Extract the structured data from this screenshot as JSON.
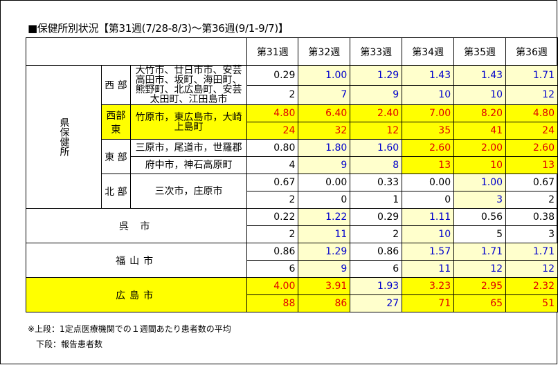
{
  "title": "■保健所別状況【第31週(7/28-8/3)～第36週(9/1-9/7)】",
  "weeks": [
    "第31週",
    "第32週",
    "第33週",
    "第34週",
    "第35週",
    "第36週"
  ],
  "prefecture_label": "県保健所",
  "rows": [
    {
      "region": "西 部",
      "munis": [
        {
          "text": "大竹市、廿日市市、安芸高田市、坂町、海田町、熊野町、北広島町、安芸太田町、江田島市",
          "cells": [
            {
              "v": "0.29",
              "c": "blk",
              "bg": ""
            },
            {
              "v": "1.00",
              "c": "blue",
              "bg": "ly"
            },
            {
              "v": "1.29",
              "c": "blue",
              "bg": "ly"
            },
            {
              "v": "1.43",
              "c": "blue",
              "bg": "ly"
            },
            {
              "v": "1.43",
              "c": "blue",
              "bg": "ly"
            },
            {
              "v": "1.71",
              "c": "blue",
              "bg": "ly"
            }
          ],
          "counts": [
            {
              "v": "2",
              "c": "blk",
              "bg": ""
            },
            {
              "v": "7",
              "c": "blue",
              "bg": "ly"
            },
            {
              "v": "9",
              "c": "blue",
              "bg": "ly"
            },
            {
              "v": "10",
              "c": "blue",
              "bg": "ly"
            },
            {
              "v": "10",
              "c": "blue",
              "bg": "ly"
            },
            {
              "v": "12",
              "c": "blue",
              "bg": "ly"
            }
          ]
        }
      ]
    },
    {
      "region": "西部東",
      "munis": [
        {
          "text": "竹原市，東広島市，大崎上島町",
          "cells": [
            {
              "v": "4.80",
              "c": "red",
              "bg": "y"
            },
            {
              "v": "6.40",
              "c": "red",
              "bg": "y"
            },
            {
              "v": "2.40",
              "c": "red",
              "bg": "y"
            },
            {
              "v": "7.00",
              "c": "red",
              "bg": "y"
            },
            {
              "v": "8.20",
              "c": "red",
              "bg": "y"
            },
            {
              "v": "4.80",
              "c": "red",
              "bg": "y"
            }
          ],
          "counts": [
            {
              "v": "24",
              "c": "red",
              "bg": "y"
            },
            {
              "v": "32",
              "c": "red",
              "bg": "y"
            },
            {
              "v": "12",
              "c": "red",
              "bg": "y"
            },
            {
              "v": "35",
              "c": "red",
              "bg": "y"
            },
            {
              "v": "41",
              "c": "red",
              "bg": "y"
            },
            {
              "v": "24",
              "c": "red",
              "bg": "y"
            }
          ]
        }
      ]
    },
    {
      "region": "東 部",
      "munis": [
        {
          "text": "三原市，尾道市，世羅郡",
          "cells": [
            {
              "v": "0.80",
              "c": "blk",
              "bg": ""
            },
            {
              "v": "1.80",
              "c": "blue",
              "bg": "ly"
            },
            {
              "v": "1.60",
              "c": "blue",
              "bg": "ly"
            },
            {
              "v": "2.60",
              "c": "red",
              "bg": "y"
            },
            {
              "v": "2.00",
              "c": "red",
              "bg": "y"
            },
            {
              "v": "2.60",
              "c": "red",
              "bg": "y"
            }
          ]
        },
        {
          "text": "府中市，神石高原町",
          "cells": [
            {
              "v": "4",
              "c": "blk",
              "bg": ""
            },
            {
              "v": "9",
              "c": "blue",
              "bg": "ly"
            },
            {
              "v": "8",
              "c": "blue",
              "bg": "ly"
            },
            {
              "v": "13",
              "c": "red",
              "bg": "y"
            },
            {
              "v": "10",
              "c": "red",
              "bg": "y"
            },
            {
              "v": "13",
              "c": "red",
              "bg": "y"
            }
          ]
        }
      ]
    },
    {
      "region": "北 部",
      "munis": [
        {
          "text": "三次市，庄原市",
          "cells": [
            {
              "v": "0.67",
              "c": "blk",
              "bg": ""
            },
            {
              "v": "0.00",
              "c": "blk",
              "bg": ""
            },
            {
              "v": "0.33",
              "c": "blk",
              "bg": ""
            },
            {
              "v": "0.00",
              "c": "blk",
              "bg": ""
            },
            {
              "v": "1.00",
              "c": "blue",
              "bg": "ly"
            },
            {
              "v": "0.67",
              "c": "blk",
              "bg": ""
            }
          ],
          "counts": [
            {
              "v": "2",
              "c": "blk",
              "bg": ""
            },
            {
              "v": "0",
              "c": "blk",
              "bg": ""
            },
            {
              "v": "1",
              "c": "blk",
              "bg": ""
            },
            {
              "v": "0",
              "c": "blk",
              "bg": ""
            },
            {
              "v": "3",
              "c": "blue",
              "bg": "ly"
            },
            {
              "v": "2",
              "c": "blk",
              "bg": ""
            }
          ]
        }
      ]
    }
  ],
  "cities": [
    {
      "name": "呉 市",
      "rates": [
        {
          "v": "0.22",
          "c": "blk",
          "bg": ""
        },
        {
          "v": "1.22",
          "c": "blue",
          "bg": "ly"
        },
        {
          "v": "0.29",
          "c": "blk",
          "bg": ""
        },
        {
          "v": "1.11",
          "c": "blue",
          "bg": "ly"
        },
        {
          "v": "0.56",
          "c": "blk",
          "bg": ""
        },
        {
          "v": "0.38",
          "c": "blk",
          "bg": ""
        }
      ],
      "counts": [
        {
          "v": "2",
          "c": "blk",
          "bg": ""
        },
        {
          "v": "11",
          "c": "blue",
          "bg": "ly"
        },
        {
          "v": "2",
          "c": "blk",
          "bg": ""
        },
        {
          "v": "10",
          "c": "blue",
          "bg": "ly"
        },
        {
          "v": "5",
          "c": "blk",
          "bg": ""
        },
        {
          "v": "3",
          "c": "blk",
          "bg": ""
        }
      ]
    },
    {
      "name": "福山市",
      "rates": [
        {
          "v": "0.86",
          "c": "blk",
          "bg": ""
        },
        {
          "v": "1.29",
          "c": "blue",
          "bg": "ly"
        },
        {
          "v": "0.86",
          "c": "blk",
          "bg": ""
        },
        {
          "v": "1.57",
          "c": "blue",
          "bg": "ly"
        },
        {
          "v": "1.71",
          "c": "blue",
          "bg": "ly"
        },
        {
          "v": "1.71",
          "c": "blue",
          "bg": "ly"
        }
      ],
      "counts": [
        {
          "v": "6",
          "c": "blk",
          "bg": ""
        },
        {
          "v": "9",
          "c": "blue",
          "bg": "ly"
        },
        {
          "v": "6",
          "c": "blk",
          "bg": ""
        },
        {
          "v": "11",
          "c": "blue",
          "bg": "ly"
        },
        {
          "v": "12",
          "c": "blue",
          "bg": "ly"
        },
        {
          "v": "12",
          "c": "blue",
          "bg": "ly"
        }
      ]
    },
    {
      "name": "広島市",
      "rates": [
        {
          "v": "4.00",
          "c": "red",
          "bg": "y"
        },
        {
          "v": "3.91",
          "c": "red",
          "bg": "y"
        },
        {
          "v": "1.93",
          "c": "blue",
          "bg": "ly"
        },
        {
          "v": "3.23",
          "c": "red",
          "bg": "y"
        },
        {
          "v": "2.95",
          "c": "red",
          "bg": "y"
        },
        {
          "v": "2.32",
          "c": "red",
          "bg": "y"
        }
      ],
      "counts": [
        {
          "v": "88",
          "c": "red",
          "bg": "y"
        },
        {
          "v": "86",
          "c": "red",
          "bg": "y"
        },
        {
          "v": "27",
          "c": "blue",
          "bg": "ly"
        },
        {
          "v": "71",
          "c": "red",
          "bg": "y"
        },
        {
          "v": "65",
          "c": "red",
          "bg": "y"
        },
        {
          "v": "51",
          "c": "red",
          "bg": "y"
        }
      ]
    }
  ],
  "notes": [
    "※上段：1定点医療機関での１週間あたり患者数の平均",
    "下段：報告患者数"
  ],
  "colors": {
    "red": "#e00000",
    "blue": "#0000cc",
    "yellow": "#ffff00",
    "light_yellow": "#ffffcc"
  }
}
